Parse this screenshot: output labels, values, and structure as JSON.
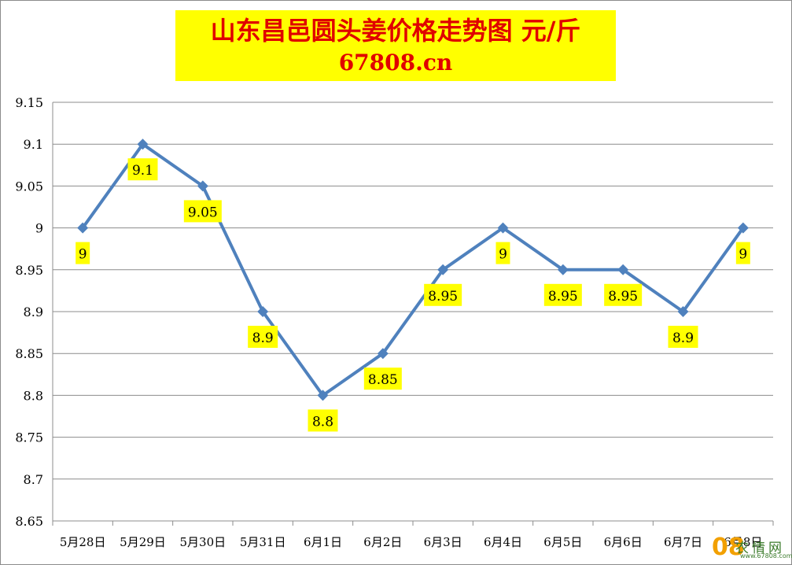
{
  "chart_data": {
    "type": "line",
    "title": "山东昌邑圆头姜价格走势图 元/斤",
    "subtitle": "67808.cn",
    "categories": [
      "5月28日",
      "5月29日",
      "5月30日",
      "5月31日",
      "6月1日",
      "6月2日",
      "6月3日",
      "6月4日",
      "6月5日",
      "6月6日",
      "6月7日",
      "6月8日"
    ],
    "series": [
      {
        "values": [
          9,
          9.1,
          9.05,
          8.9,
          8.8,
          8.85,
          8.95,
          9,
          8.95,
          8.95,
          8.9,
          9
        ]
      }
    ],
    "data_labels": [
      "9",
      "9.1",
      "9.05",
      "8.9",
      "8.8",
      "8.85",
      "8.95",
      "9",
      "8.95",
      "8.95",
      "8.9",
      "9"
    ],
    "y_ticks": [
      "9.15",
      "9.1",
      "9.05",
      "9",
      "8.95",
      "8.9",
      "8.85",
      "8.8",
      "8.75",
      "8.7",
      "8.65"
    ],
    "ylim": [
      8.65,
      9.15
    ],
    "ystep": 0.05,
    "grid": true,
    "legend": "none",
    "colors": {
      "line": "#4f81bd",
      "marker": "#4f81bd",
      "label_bg": "#ffff00",
      "title": "#e00000",
      "title_bg": "#ffff00",
      "grid": "#8c8c8c"
    }
  },
  "watermark": {
    "number": "08",
    "text": "农情网",
    "url": "www.67808.com"
  }
}
